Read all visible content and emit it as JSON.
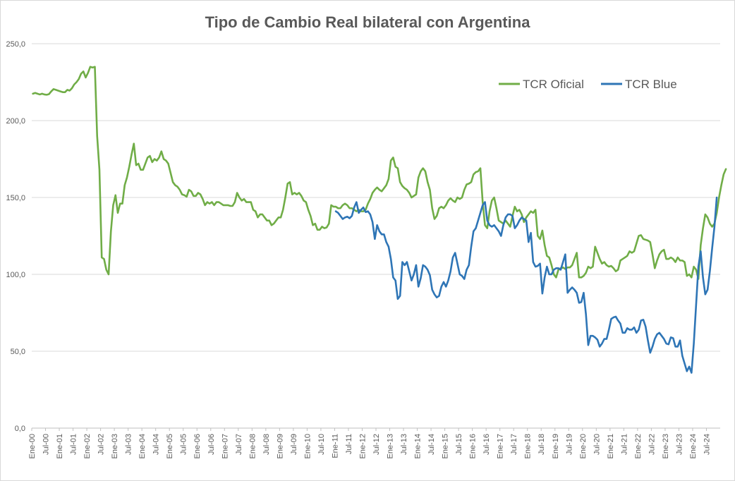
{
  "chart_data": {
    "type": "line",
    "title": "Tipo de Cambio Real bilateral con Argentina",
    "xlabel": "",
    "ylabel": "",
    "ylim": [
      0,
      250
    ],
    "y_ticks": [
      "0,0",
      "50,0",
      "100,0",
      "150,0",
      "200,0",
      "250,0"
    ],
    "grid": "horizontal",
    "legend_position": "top-right",
    "x_tick_labels": [
      "Ene-00",
      "Jul-00",
      "Ene-01",
      "Jul-01",
      "Ene-02",
      "Jul-02",
      "Ene-03",
      "Jul-03",
      "Ene-04",
      "Jul-04",
      "Ene-05",
      "Jul-05",
      "Ene-06",
      "Jul-06",
      "Ene-07",
      "Jul-07",
      "Ene-08",
      "Jul-08",
      "Ene-09",
      "Jul-09",
      "Ene-10",
      "Jul-10",
      "Ene-11",
      "Jul-11",
      "Ene-12",
      "Jul-12",
      "Ene-13",
      "Jul-13",
      "Ene-14",
      "Jul-14",
      "Ene-15",
      "Jul-15",
      "Ene-16",
      "Jul-16",
      "Ene-17",
      "Jul-17",
      "Ene-18",
      "Jul-18",
      "Ene-19",
      "Jul-19",
      "Ene-20",
      "Jul-20",
      "Ene-21",
      "Jul-21",
      "Ene-22",
      "Jul-22",
      "Ene-23",
      "Jul-23",
      "Ene-24",
      "Jul-24"
    ],
    "x_start": "2000-01",
    "series": [
      {
        "name": "TCR Oficial",
        "color": "#70ad47",
        "start_index": 0,
        "values": [
          217.5,
          218.0,
          217.5,
          217.0,
          217.5,
          217.0,
          216.8,
          217.2,
          219.0,
          220.5,
          220.0,
          219.5,
          219.0,
          218.5,
          218.5,
          220.0,
          219.5,
          221.0,
          223.5,
          225.0,
          227.0,
          230.5,
          232.0,
          228.0,
          231.0,
          235.0,
          234.5,
          235.0,
          190.0,
          168.0,
          111.0,
          110.0,
          103.0,
          100.0,
          128.0,
          145.0,
          151.5,
          140.0,
          146.0,
          146.0,
          158.0,
          163.0,
          170.0,
          178.0,
          185.0,
          171.0,
          172.0,
          168.0,
          168.0,
          172.0,
          176.0,
          177.0,
          173.0,
          175.0,
          174.0,
          176.0,
          180.0,
          175.0,
          174.0,
          172.0,
          166.0,
          160.0,
          158.0,
          157.0,
          155.0,
          152.0,
          151.5,
          150.5,
          155.0,
          154.0,
          151.0,
          151.0,
          153.0,
          152.0,
          149.0,
          145.0,
          147.0,
          146.0,
          147.0,
          145.0,
          147.0,
          147.0,
          146.0,
          145.0,
          145.0,
          145.0,
          144.5,
          144.5,
          147.0,
          153.0,
          150.0,
          148.0,
          149.0,
          147.0,
          147.0,
          147.0,
          142.0,
          141.0,
          137.0,
          139.0,
          139.0,
          137.0,
          135.0,
          135.0,
          132.0,
          133.0,
          135.0,
          137.0,
          137.0,
          142.0,
          150.0,
          159.0,
          160.0,
          152.0,
          153.0,
          152.0,
          153.0,
          151.0,
          148.0,
          147.0,
          142.0,
          138.0,
          132.0,
          133.0,
          129.0,
          129.0,
          131.0,
          130.0,
          130.5,
          133.0,
          145.0,
          144.0,
          144.0,
          143.0,
          143.0,
          145.0,
          146.0,
          145.0,
          143.0,
          143.0,
          142.0,
          141.0,
          142.0,
          141.0,
          141.0,
          142.0,
          146.0,
          149.0,
          153.0,
          155.0,
          156.5,
          155.0,
          154.0,
          156.0,
          158.0,
          162.0,
          174.0,
          176.0,
          170.0,
          169.0,
          160.0,
          157.5,
          156.0,
          155.0,
          153.0,
          150.0,
          151.0,
          152.0,
          163.0,
          167.0,
          169.0,
          167.0,
          160.0,
          155.0,
          143.0,
          136.0,
          138.0,
          143.0,
          144.0,
          143.0,
          145.0,
          148.0,
          149.5,
          148.0,
          147.0,
          150.0,
          149.0,
          150.0,
          155.0,
          158.5,
          159.0,
          160.0,
          165.0,
          166.5,
          167.0,
          169.0,
          147.0,
          132.0,
          130.0,
          141.0,
          148.0,
          150.0,
          143.0,
          135.0,
          134.0,
          133.0,
          135.0,
          133.0,
          131.0,
          138.0,
          144.0,
          141.0,
          142.0,
          139.0,
          134.0,
          137.0,
          139.0,
          141.0,
          140.0,
          142.0,
          125.0,
          123.0,
          128.5,
          119.0,
          112.0,
          111.0,
          106.0,
          100.0,
          98.0,
          103.0,
          104.0,
          104.5,
          103.5,
          104.5,
          104.5,
          106.0,
          110.0,
          114.0,
          98.0,
          98.0,
          99.0,
          101.0,
          105.0,
          104.0,
          105.0,
          118.0,
          114.0,
          110.0,
          107.0,
          108.0,
          106.0,
          105.0,
          105.5,
          104.0,
          102.0,
          103.0,
          109.0,
          110.0,
          111.0,
          112.0,
          115.0,
          114.0,
          115.0,
          120.0,
          125.0,
          125.5,
          123.0,
          122.5,
          122.0,
          121.0,
          113.0,
          104.0,
          109.0,
          113.0,
          115.0,
          116.0,
          110.0,
          110.0,
          111.0,
          110.0,
          108.0,
          111.0,
          109.0,
          109.0,
          108.0,
          99.0,
          100.0,
          98.0,
          105.0,
          103.0,
          97.0,
          119.0,
          130.0,
          139.0,
          137.0,
          133.0,
          131.0,
          133.0,
          140.0,
          150.0,
          158.0,
          165.0,
          168.5
        ]
      },
      {
        "name": "TCR Blue",
        "color": "#2e75b6",
        "start_index": 132,
        "values": [
          141.0,
          140.0,
          138.0,
          136.0,
          137.0,
          137.5,
          136.5,
          138.0,
          143.5,
          147.0,
          140.0,
          142.0,
          143.5,
          140.5,
          141.0,
          139.0,
          134.0,
          123.0,
          132.0,
          128.0,
          126.0,
          126.0,
          121.0,
          118.0,
          110.0,
          98.0,
          96.0,
          84.0,
          86.0,
          108.0,
          106.0,
          108.0,
          102.0,
          96.0,
          100.0,
          106.0,
          92.0,
          97.5,
          106.0,
          105.0,
          103.0,
          99.5,
          90.0,
          87.0,
          85.0,
          86.0,
          92.0,
          95.0,
          92.0,
          96.0,
          102.0,
          111.0,
          114.0,
          107.0,
          100.0,
          99.0,
          97.0,
          103.0,
          106.0,
          118.0,
          128.0,
          130.0,
          135.0,
          140.0,
          145.0,
          147.0,
          135.0,
          132.0,
          131.0,
          132.0,
          130.0,
          128.0,
          125.0,
          132.0,
          137.0,
          139.0,
          139.0,
          138.0,
          130.0,
          132.0,
          135.0,
          137.0,
          136.0,
          135.0,
          121.0,
          127.0,
          108.0,
          105.0,
          105.5,
          107.0,
          87.5,
          98.0,
          105.0,
          100.0,
          100.0,
          103.0,
          104.0,
          104.0,
          103.0,
          108.0,
          113.0,
          88.0,
          90.0,
          91.5,
          90.0,
          88.0,
          81.5,
          82.0,
          88.0,
          74.0,
          54.0,
          60.0,
          60.0,
          59.0,
          57.5,
          53.0,
          55.0,
          58.0,
          58.0,
          64.0,
          71.0,
          72.0,
          72.5,
          70.0,
          68.0,
          62.0,
          62.0,
          65.0,
          64.0,
          64.0,
          65.5,
          62.0,
          64.0,
          70.0,
          70.5,
          66.0,
          57.0,
          49.0,
          53.0,
          58.0,
          61.0,
          62.0,
          60.0,
          58.0,
          55.0,
          54.5,
          59.0,
          58.5,
          53.0,
          53.0,
          57.0,
          47.0,
          42.0,
          37.0,
          40.0,
          36.0,
          55.0,
          80.0,
          105.0,
          115.0,
          98.0,
          87.0,
          90.0,
          102.0,
          117.0,
          131.0,
          150.0
        ]
      }
    ]
  }
}
